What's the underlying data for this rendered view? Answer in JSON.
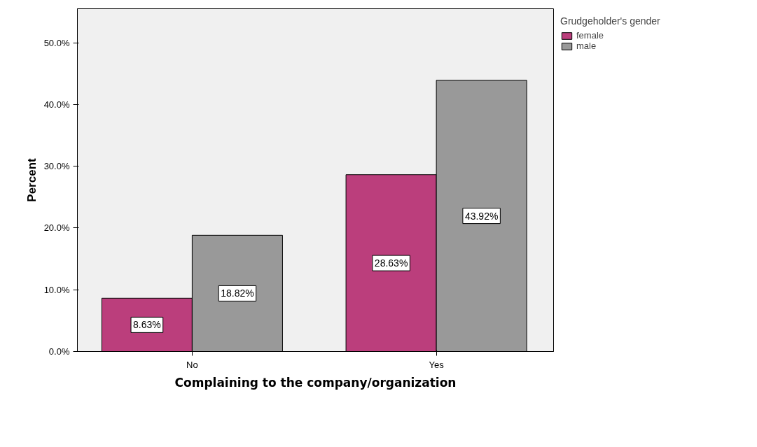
{
  "chart_data": {
    "type": "bar",
    "xlabel": "Complaining to the company/organization",
    "ylabel": "Percent",
    "legend_title": "Grudgeholder's gender",
    "categories": [
      "No",
      "Yes"
    ],
    "series": [
      {
        "name": "female",
        "color": "#bb3e7c",
        "values": [
          8.63,
          28.63
        ],
        "value_labels": [
          "8.63%",
          "28.63%"
        ]
      },
      {
        "name": "male",
        "color": "#999999",
        "values": [
          18.82,
          43.92
        ],
        "value_labels": [
          "18.82%",
          "43.92%"
        ]
      }
    ],
    "ylim": [
      0,
      55.5
    ],
    "yticks": [
      {
        "value": 0,
        "label": "0.0%"
      },
      {
        "value": 10,
        "label": "10.0%"
      },
      {
        "value": 20,
        "label": "20.0%"
      },
      {
        "value": 30,
        "label": "30.0%"
      },
      {
        "value": 40,
        "label": "40.0%"
      },
      {
        "value": 50,
        "label": "50.0%"
      }
    ],
    "grid": false,
    "legend": "top right"
  }
}
